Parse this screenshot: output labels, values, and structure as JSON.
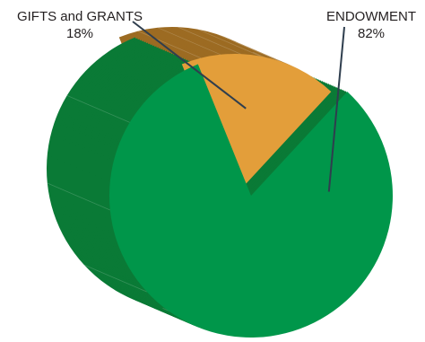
{
  "chart_data": {
    "type": "pie",
    "slices": [
      {
        "label": "GIFTS and GRANTS",
        "value": 18,
        "value_label": "18%",
        "color": "#e39e3a",
        "side_color": "#9c6b22"
      },
      {
        "label": "ENDOWMENT",
        "value": 82,
        "value_label": "82%",
        "color": "#00964a",
        "side_color": "#0a7a36"
      }
    ],
    "style": "3d-exploded",
    "legend": "none",
    "label_placement": "outside-with-leader-lines"
  }
}
